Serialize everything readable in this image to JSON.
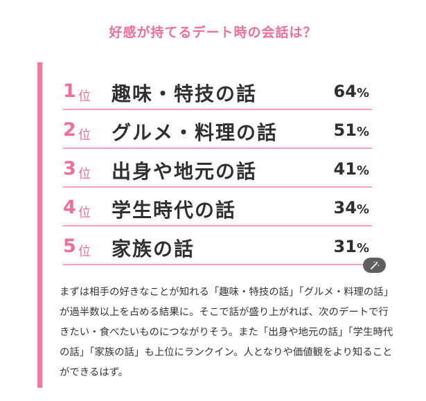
{
  "title": "好感が持てるデート時の会話は？",
  "rank_suffix": "位",
  "percent_unit": "%",
  "rankings": [
    {
      "rank": "1",
      "topic": "趣味・特技の話",
      "percent": "64"
    },
    {
      "rank": "2",
      "topic": "グルメ・料理の話",
      "percent": "51"
    },
    {
      "rank": "3",
      "topic": "出身や地元の話",
      "percent": "41"
    },
    {
      "rank": "4",
      "topic": "学生時代の話",
      "percent": "34"
    },
    {
      "rank": "5",
      "topic": "家族の話",
      "percent": "31"
    }
  ],
  "magic_button_icon": "magic-wand-icon",
  "description": "まずは相手の好きなことが知れる「趣味・特技の話」「グルメ・料理の話」が過半数以上を占める結果に。そこで話が盛り上がれば、次のデートで行きたい・食べたいものにつながりそう。また「出身や地元の話」「学生時代の話」「家族の話」も上位にランクイン。人となりや価値観をより知ることができるはず。",
  "colors": {
    "accent": "#ee6f97",
    "accent_bar": "#f27aa0",
    "divider": "#f2a2b8",
    "text": "#333333"
  }
}
